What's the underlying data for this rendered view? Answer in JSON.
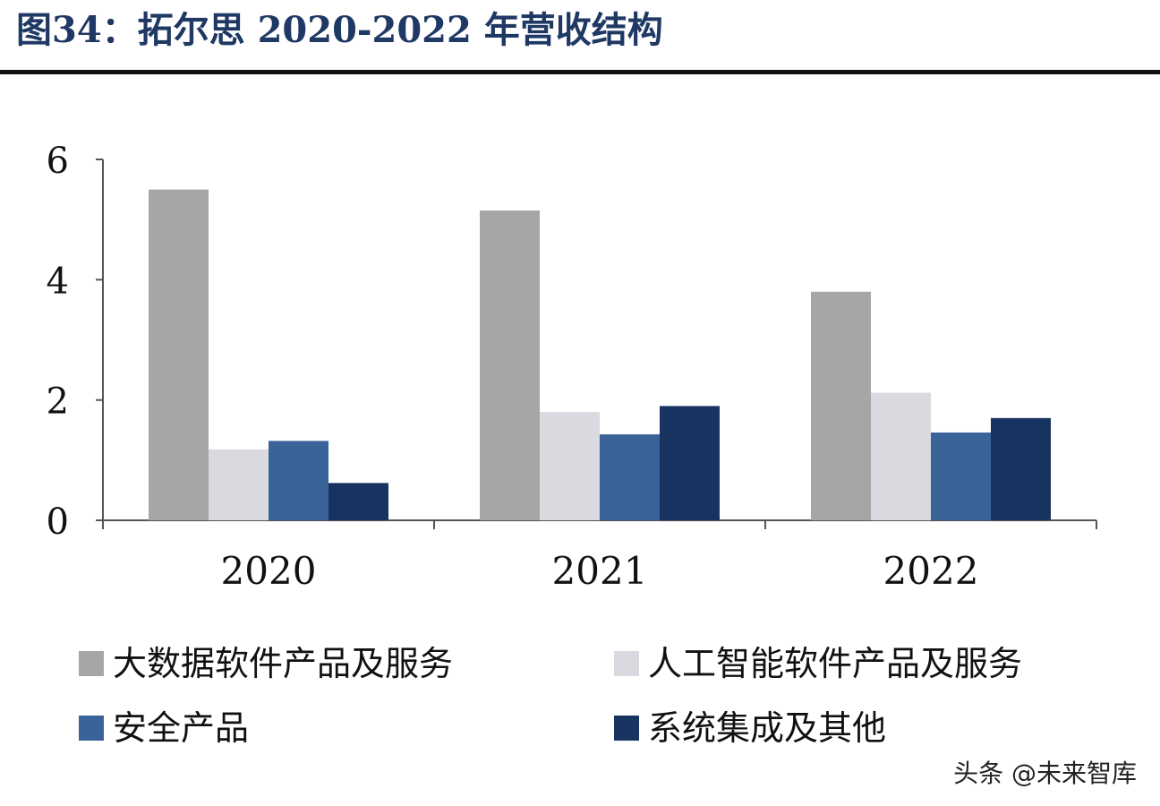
{
  "figure": {
    "title": "图34：拓尔思 2020-2022 年营收结构"
  },
  "chart_data": {
    "type": "bar",
    "categories": [
      "2020",
      "2021",
      "2022"
    ],
    "series": [
      {
        "name": "大数据软件产品及服务",
        "color": "#a6a6a6",
        "values": [
          5.5,
          5.15,
          3.8
        ]
      },
      {
        "name": "人工智能软件产品及服务",
        "color": "#d9dadf",
        "values": [
          1.18,
          1.8,
          2.12
        ]
      },
      {
        "name": "安全产品",
        "color": "#3a6399",
        "values": [
          1.32,
          1.43,
          1.46
        ]
      },
      {
        "name": "系统集成及其他",
        "color": "#17335f",
        "values": [
          0.62,
          1.9,
          1.7
        ]
      }
    ],
    "yticks": [
      "0",
      "2",
      "4",
      "6"
    ],
    "ylim": [
      0,
      6
    ],
    "xlabel": "",
    "ylabel": "",
    "grid": false,
    "legend_position": "bottom"
  },
  "watermark": {
    "text": "头条 @未来智库"
  }
}
